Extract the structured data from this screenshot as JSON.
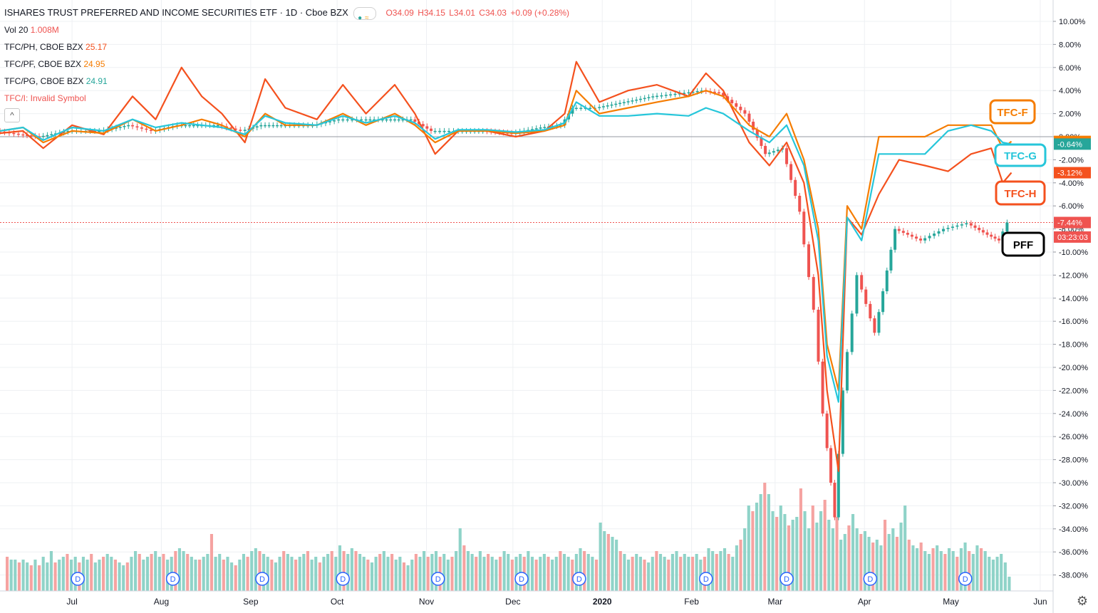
{
  "header": {
    "title": "ISHARES TRUST PREFERRED AND INCOME SECURITIES ETF · 1D · Cboe BZX",
    "open": "O34.09",
    "high": "H34.15",
    "low": "L34.01",
    "close": "C34.03",
    "change": "+0.09 (+0.28%)"
  },
  "legend": {
    "vol_label": "Vol 20",
    "vol_value": "1.008M",
    "ph_label": "TFC/PH, CBOE BZX",
    "ph_value": "25.17",
    "pf_label": "TFC/PF, CBOE BZX",
    "pf_value": "24.95",
    "pg_label": "TFC/PG, CBOE BZX",
    "pg_value": "24.91",
    "invalid": "TFC/I: Invalid Symbol",
    "collapse_icon": "chevron-up-icon"
  },
  "colors": {
    "up": "#26a69a",
    "down": "#ef5350",
    "vol_up": "#8fd3c8",
    "vol_down": "#f5a3a1",
    "tfc_h": "#f4511e",
    "tfc_f": "#f57c00",
    "tfc_g": "#26c6da",
    "grid": "#eef0f3",
    "axis_text": "#131722"
  },
  "annotations": [
    {
      "text": "TFC-F",
      "color": "#f57c00"
    },
    {
      "text": "TFC-G",
      "color": "#26c6da"
    },
    {
      "text": "TFC-H",
      "color": "#f4511e"
    },
    {
      "text": "PFF",
      "color": "#000000"
    }
  ],
  "price_labels": [
    {
      "text": "-0.41%",
      "value": -0.41,
      "bg": "#f57c00"
    },
    {
      "text": "-0.64%",
      "value": -0.64,
      "bg": "#26a69a"
    },
    {
      "text": "-3.12%",
      "value": -3.12,
      "bg": "#f4511e"
    },
    {
      "text": "-7.44%",
      "value": -7.44,
      "bg": "#ef5350"
    },
    {
      "text": "03:23:03",
      "value": -8.7,
      "bg": "#ef5350"
    }
  ],
  "event_marker": "D",
  "settings_icon": "gear-icon",
  "chart_data": {
    "type": "line",
    "y_axis": {
      "ylim": [
        -39,
        11
      ],
      "ticks": [
        10,
        8,
        6,
        4,
        2,
        0,
        -2,
        -4,
        -6,
        -8,
        -10,
        -12,
        -14,
        -16,
        -18,
        -20,
        -22,
        -24,
        -26,
        -28,
        -30,
        -32,
        -34,
        -36,
        -38
      ],
      "tick_labels": [
        "10.00%",
        "8.00%",
        "6.00%",
        "4.00%",
        "2.00%",
        "0.00%",
        "-2.00%",
        "-4.00%",
        "-6.00%",
        "-8.00%",
        "-10.00%",
        "-12.00%",
        "-14.00%",
        "-16.00%",
        "-18.00%",
        "-20.00%",
        "-22.00%",
        "-24.00%",
        "-26.00%",
        "-28.00%",
        "-30.00%",
        "-32.00%",
        "-34.00%",
        "-36.00%",
        "-38.00%"
      ]
    },
    "x_axis": {
      "range": [
        "2019-06-06",
        "2020-06-03"
      ],
      "ticks": [
        {
          "date": "2019-07-01",
          "label": "Jul"
        },
        {
          "date": "2019-08-01",
          "label": "Aug"
        },
        {
          "date": "2019-09-01",
          "label": "Sep"
        },
        {
          "date": "2019-10-01",
          "label": "Oct"
        },
        {
          "date": "2019-11-01",
          "label": "Nov"
        },
        {
          "date": "2019-12-01",
          "label": "Dec"
        },
        {
          "date": "2020-01-01",
          "label": "2020"
        },
        {
          "date": "2020-02-01",
          "label": "Feb"
        },
        {
          "date": "2020-03-01",
          "label": "Mar"
        },
        {
          "date": "2020-04-01",
          "label": "Apr"
        },
        {
          "date": "2020-05-01",
          "label": "May"
        },
        {
          "date": "2020-06-01",
          "label": "Jun"
        }
      ]
    },
    "event_dates": [
      "2019-07-03",
      "2019-08-05",
      "2019-09-05",
      "2019-10-03",
      "2019-11-05",
      "2019-12-04",
      "2019-12-24",
      "2020-02-06",
      "2020-03-05",
      "2020-04-03",
      "2020-05-06"
    ],
    "series": [
      {
        "name": "TFC/PH",
        "color": "#f4511e",
        "x": [
          "2019-06-06",
          "2019-06-14",
          "2019-06-21",
          "2019-07-01",
          "2019-07-12",
          "2019-07-22",
          "2019-07-30",
          "2019-08-08",
          "2019-08-15",
          "2019-08-22",
          "2019-08-30",
          "2019-09-06",
          "2019-09-13",
          "2019-09-24",
          "2019-10-03",
          "2019-10-11",
          "2019-10-21",
          "2019-10-28",
          "2019-11-04",
          "2019-11-12",
          "2019-11-22",
          "2019-12-02",
          "2019-12-12",
          "2019-12-19",
          "2019-12-23",
          "2019-12-31",
          "2020-01-10",
          "2020-01-20",
          "2020-01-31",
          "2020-02-06",
          "2020-02-12",
          "2020-02-21",
          "2020-02-28",
          "2020-03-05",
          "2020-03-11",
          "2020-03-16",
          "2020-03-19",
          "2020-03-23",
          "2020-03-26",
          "2020-03-31",
          "2020-04-06",
          "2020-04-13",
          "2020-04-22",
          "2020-04-30",
          "2020-05-08",
          "2020-05-15",
          "2020-05-19",
          "2020-05-22"
        ],
        "y": [
          0.3,
          0.5,
          -1.0,
          1.0,
          0.2,
          3.5,
          1.5,
          6.0,
          3.5,
          2.0,
          -0.5,
          5.0,
          2.5,
          1.5,
          4.5,
          2.0,
          4.5,
          2.0,
          -1.5,
          0.5,
          0.5,
          0.0,
          0.5,
          2.0,
          6.5,
          3.0,
          4.0,
          4.5,
          3.5,
          5.5,
          4.0,
          -0.5,
          -2.5,
          -0.5,
          -4.0,
          -12.0,
          -22.0,
          -29.0,
          -7.0,
          -8.5,
          -5.0,
          -2.0,
          -2.5,
          -3.0,
          -1.5,
          -1.0,
          -4.0,
          -3.12
        ]
      },
      {
        "name": "TFC/PF",
        "color": "#f57c00",
        "x": [
          "2019-06-06",
          "2019-06-14",
          "2019-06-21",
          "2019-07-01",
          "2019-07-12",
          "2019-07-22",
          "2019-07-30",
          "2019-08-08",
          "2019-08-15",
          "2019-08-22",
          "2019-08-30",
          "2019-09-06",
          "2019-09-13",
          "2019-09-24",
          "2019-10-03",
          "2019-10-11",
          "2019-10-21",
          "2019-10-28",
          "2019-11-04",
          "2019-11-12",
          "2019-11-22",
          "2019-12-02",
          "2019-12-12",
          "2019-12-19",
          "2019-12-23",
          "2019-12-31",
          "2020-01-10",
          "2020-01-20",
          "2020-01-31",
          "2020-02-06",
          "2020-02-12",
          "2020-02-21",
          "2020-02-28",
          "2020-03-05",
          "2020-03-11",
          "2020-03-16",
          "2020-03-19",
          "2020-03-23",
          "2020-03-26",
          "2020-03-31",
          "2020-04-06",
          "2020-04-13",
          "2020-04-22",
          "2020-04-30",
          "2020-05-08",
          "2020-05-15",
          "2020-05-19",
          "2020-05-22"
        ],
        "y": [
          0.5,
          0.8,
          -0.5,
          0.5,
          0.3,
          1.5,
          0.5,
          1.0,
          1.5,
          1.0,
          0.0,
          2.0,
          1.0,
          1.0,
          2.0,
          1.0,
          2.0,
          1.0,
          -0.5,
          0.5,
          0.5,
          0.3,
          0.5,
          1.0,
          4.0,
          2.0,
          2.5,
          3.0,
          3.5,
          4.0,
          3.5,
          1.0,
          0.0,
          2.0,
          -2.0,
          -8.0,
          -18.0,
          -22.0,
          -6.0,
          -8.0,
          0.0,
          0.0,
          0.0,
          1.0,
          1.0,
          1.0,
          -1.0,
          -0.41
        ]
      },
      {
        "name": "TFC/PG",
        "color": "#26c6da",
        "x": [
          "2019-06-06",
          "2019-06-14",
          "2019-06-21",
          "2019-07-01",
          "2019-07-12",
          "2019-07-22",
          "2019-07-30",
          "2019-08-08",
          "2019-08-15",
          "2019-08-22",
          "2019-08-30",
          "2019-09-06",
          "2019-09-13",
          "2019-09-24",
          "2019-10-03",
          "2019-10-11",
          "2019-10-21",
          "2019-10-28",
          "2019-11-04",
          "2019-11-12",
          "2019-11-22",
          "2019-12-02",
          "2019-12-12",
          "2019-12-19",
          "2019-12-23",
          "2019-12-31",
          "2020-01-10",
          "2020-01-20",
          "2020-01-31",
          "2020-02-06",
          "2020-02-12",
          "2020-02-21",
          "2020-02-28",
          "2020-03-05",
          "2020-03-11",
          "2020-03-16",
          "2020-03-19",
          "2020-03-23",
          "2020-03-26",
          "2020-03-31",
          "2020-04-06",
          "2020-04-13",
          "2020-04-22",
          "2020-04-30",
          "2020-05-08",
          "2020-05-15",
          "2020-05-19",
          "2020-05-22"
        ],
        "y": [
          0.5,
          0.8,
          -0.3,
          0.8,
          0.5,
          1.5,
          0.8,
          1.2,
          1.0,
          0.8,
          0.2,
          1.8,
          1.2,
          1.0,
          1.8,
          1.2,
          1.8,
          1.2,
          -0.2,
          0.6,
          0.6,
          0.4,
          0.6,
          1.2,
          3.0,
          1.8,
          1.8,
          2.0,
          1.8,
          2.5,
          2.0,
          0.5,
          -0.5,
          1.0,
          -2.5,
          -9.0,
          -19.0,
          -23.0,
          -7.0,
          -9.0,
          -1.5,
          -1.5,
          -1.5,
          0.5,
          1.0,
          0.5,
          -0.5,
          -0.64
        ]
      },
      {
        "name": "PFF",
        "color": "#26a69a",
        "x": [
          "2019-06-06",
          "2019-06-14",
          "2019-06-21",
          "2019-07-01",
          "2019-07-12",
          "2019-07-22",
          "2019-07-30",
          "2019-08-08",
          "2019-08-15",
          "2019-08-22",
          "2019-08-30",
          "2019-09-06",
          "2019-09-13",
          "2019-09-24",
          "2019-10-03",
          "2019-10-11",
          "2019-10-21",
          "2019-10-28",
          "2019-11-04",
          "2019-11-12",
          "2019-11-22",
          "2019-12-02",
          "2019-12-12",
          "2019-12-19",
          "2019-12-23",
          "2019-12-31",
          "2020-01-10",
          "2020-01-20",
          "2020-01-31",
          "2020-02-06",
          "2020-02-12",
          "2020-02-21",
          "2020-02-28",
          "2020-03-05",
          "2020-03-11",
          "2020-03-16",
          "2020-03-19",
          "2020-03-23",
          "2020-03-26",
          "2020-03-31",
          "2020-04-06",
          "2020-04-13",
          "2020-04-22",
          "2020-04-30",
          "2020-05-08",
          "2020-05-15",
          "2020-05-19",
          "2020-05-22"
        ],
        "y": [
          0.5,
          0.2,
          0.0,
          0.5,
          0.5,
          1.0,
          0.5,
          1.0,
          1.0,
          1.0,
          0.5,
          1.0,
          1.0,
          1.0,
          1.5,
          1.5,
          1.5,
          1.5,
          0.5,
          0.5,
          0.5,
          0.3,
          0.8,
          1.0,
          2.5,
          2.5,
          3.0,
          3.5,
          3.8,
          4.0,
          3.8,
          2.0,
          -1.5,
          -1.0,
          -6.5,
          -15.0,
          -24.0,
          -33.0,
          -22.0,
          -12.0,
          -17.0,
          -8.0,
          -9.0,
          -8.0,
          -7.5,
          -8.5,
          -9.0,
          -7.44
        ]
      }
    ],
    "volume": {
      "ylim": [
        0,
        50
      ],
      "bars": [
        12,
        11,
        11,
        10,
        11,
        10,
        9,
        11,
        9,
        12,
        10,
        14,
        10,
        11,
        12,
        13,
        11,
        12,
        10,
        12,
        11,
        13,
        10,
        11,
        12,
        13,
        12,
        11,
        10,
        9,
        10,
        12,
        14,
        13,
        11,
        12,
        13,
        14,
        12,
        13,
        11,
        12,
        14,
        15,
        14,
        13,
        12,
        11,
        11,
        12,
        13,
        20,
        12,
        13,
        11,
        12,
        10,
        9,
        11,
        13,
        12,
        14,
        15,
        14,
        13,
        12,
        11,
        10,
        12,
        14,
        13,
        12,
        11,
        12,
        13,
        14,
        11,
        12,
        10,
        12,
        13,
        14,
        12,
        16,
        14,
        13,
        15,
        14,
        13,
        12,
        11,
        10,
        12,
        13,
        14,
        12,
        13,
        11,
        12,
        10,
        9,
        11,
        13,
        12,
        14,
        12,
        13,
        14,
        12,
        13,
        11,
        12,
        14,
        22,
        16,
        14,
        13,
        12,
        14,
        12,
        13,
        12,
        11,
        12,
        14,
        13,
        11,
        12,
        13,
        12,
        14,
        12,
        11,
        12,
        13,
        12,
        11,
        12,
        14,
        13,
        12,
        11,
        13,
        15,
        14,
        13,
        12,
        11,
        24,
        21,
        20,
        19,
        18,
        14,
        13,
        11,
        12,
        13,
        12,
        11,
        10,
        12,
        14,
        13,
        12,
        11,
        13,
        14,
        12,
        13,
        12,
        12,
        13,
        11,
        12,
        15,
        14,
        13,
        14,
        15,
        13,
        12,
        16,
        18,
        22,
        30,
        28,
        31,
        34,
        38,
        34,
        28,
        26,
        30,
        27,
        23,
        25,
        26,
        36,
        28,
        22,
        30,
        24,
        28,
        32,
        25,
        22,
        26,
        18,
        20,
        23,
        27,
        22,
        20,
        21,
        19,
        17,
        18,
        16,
        25,
        20,
        22,
        19,
        24,
        30,
        18,
        16,
        15,
        17,
        14,
        13,
        15,
        16,
        14,
        13,
        15,
        14,
        12,
        15,
        17,
        14,
        13,
        16,
        15,
        14,
        12,
        11,
        12,
        13,
        10,
        5
      ],
      "down_index": [
        0,
        3,
        6,
        8,
        12,
        15,
        18,
        21,
        24,
        27,
        30,
        33,
        36,
        39,
        42,
        45,
        48,
        51,
        54,
        57,
        60,
        63,
        66,
        69,
        72,
        75,
        78,
        81,
        84,
        87,
        90,
        93,
        96,
        99,
        102,
        105,
        108,
        111,
        114,
        117,
        120,
        123,
        126,
        129,
        132,
        135,
        138,
        141,
        144,
        147,
        150,
        153,
        156,
        159,
        162,
        165,
        168,
        171,
        174,
        177,
        180,
        183,
        186,
        189,
        192,
        195,
        198,
        201,
        204,
        207,
        210,
        213,
        216,
        219,
        222,
        225,
        228,
        231,
        234,
        237,
        240,
        243
      ]
    }
  }
}
